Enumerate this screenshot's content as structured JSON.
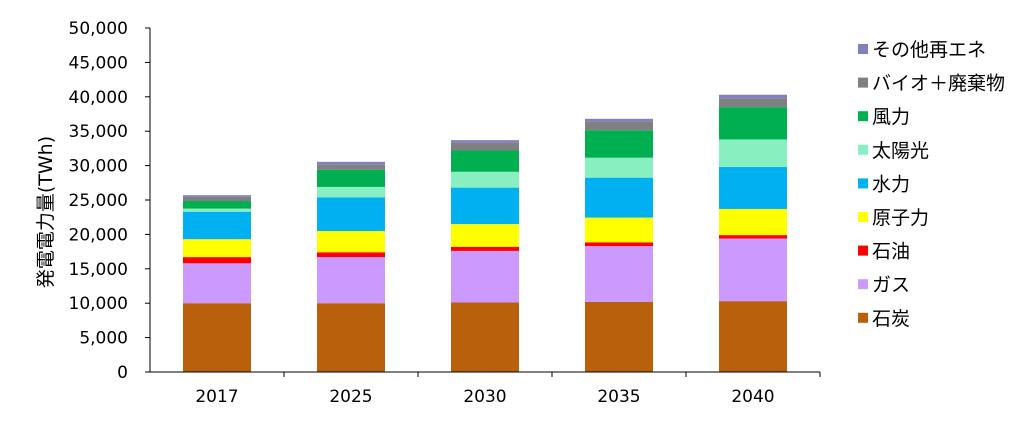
{
  "chart_data": {
    "type": "bar",
    "stacked": true,
    "categories": [
      "2017",
      "2025",
      "2030",
      "2035",
      "2040"
    ],
    "ylabel": "発電電力量(TWh)",
    "ylim": [
      0,
      50000
    ],
    "yticks": [
      "0",
      "5,000",
      "10,000",
      "15,000",
      "20,000",
      "25,000",
      "30,000",
      "35,000",
      "40,000",
      "45,000",
      "50,000"
    ],
    "grid": false,
    "legend_position": "right",
    "series": [
      {
        "name": "石炭",
        "color": "#B8600B",
        "values": [
          10000,
          10000,
          10100,
          10200,
          10300
        ]
      },
      {
        "name": "ガス",
        "color": "#CC99FF",
        "values": [
          5800,
          6700,
          7500,
          8100,
          9100
        ]
      },
      {
        "name": "石油",
        "color": "#FF0000",
        "values": [
          900,
          700,
          600,
          550,
          500
        ]
      },
      {
        "name": "原子力",
        "color": "#FFFF00",
        "values": [
          2600,
          3100,
          3300,
          3600,
          3800
        ]
      },
      {
        "name": "水力",
        "color": "#00B0F0",
        "values": [
          4000,
          4900,
          5300,
          5800,
          6100
        ]
      },
      {
        "name": "太陽光",
        "color": "#88F0C0",
        "values": [
          450,
          1500,
          2300,
          2900,
          4000
        ]
      },
      {
        "name": "風力",
        "color": "#00B050",
        "values": [
          1100,
          2500,
          3100,
          4000,
          4700
        ]
      },
      {
        "name": "バイオ＋廃棄物",
        "color": "#808080",
        "values": [
          600,
          800,
          1100,
          1200,
          1300
        ]
      },
      {
        "name": "その他再エネ",
        "color": "#8080C0",
        "values": [
          250,
          350,
          400,
          450,
          500
        ]
      }
    ],
    "legend_order": [
      "その他再エネ",
      "バイオ＋廃棄物",
      "風力",
      "太陽光",
      "水力",
      "原子力",
      "石油",
      "ガス",
      "石炭"
    ]
  }
}
